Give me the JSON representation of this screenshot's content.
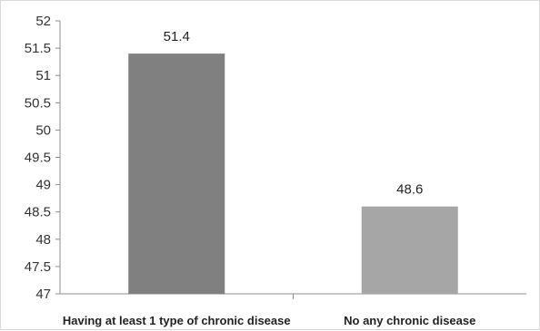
{
  "chart_data": {
    "type": "bar",
    "title": "",
    "xlabel": "",
    "ylabel": "",
    "categories": [
      "Having at least 1 type of chronic disease",
      "No any chronic disease"
    ],
    "values": [
      51.4,
      48.6
    ],
    "data_labels": [
      "51.4",
      "48.6"
    ],
    "ylim": [
      47,
      52
    ],
    "yticks": [
      "47",
      "47.5",
      "48",
      "48.5",
      "49",
      "49.5",
      "50",
      "50.5",
      "51",
      "51.5",
      "52"
    ],
    "grid": false,
    "legend": "none",
    "colors": [
      "#808080",
      "#a6a6a6"
    ]
  }
}
